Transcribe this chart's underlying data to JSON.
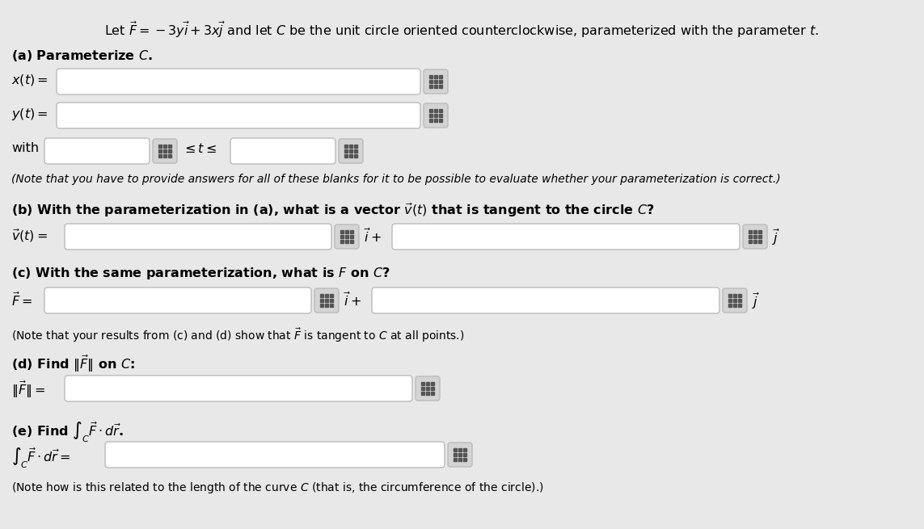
{
  "bg_color": "#e8e8e8",
  "white": "#ffffff",
  "black": "#000000",
  "icon_bg": "#d4d4d4",
  "title_text": "Let $\\vec{F} = -3y\\vec{i} + 3x\\vec{j}$ and let $C$ be the unit circle oriented counterclockwise, parameterized with the parameter $t$.",
  "part_a_label": "(a) Parameterize $C$.",
  "xt_label": "$x(t) =$",
  "yt_label": "$y(t) =$",
  "with_label": "with",
  "leq_label": "$\\leq t \\leq$",
  "note_a": "(Note that you have to provide answers for all of these blanks for it to be possible to evaluate whether your parameterization is correct.)",
  "part_b_label": "(b) With the parameterization in (a), what is a vector $\\vec{v}(t)$ that is tangent to the circle $C$?",
  "vt_label": "$\\vec{v}(t) =$",
  "i_plus_b": "$\\vec{i}+$",
  "j_b": "$\\vec{j}$",
  "part_c_label": "(c) With the same parameterization, what is $F$ on $C$?",
  "F_label": "$\\vec{F} =$",
  "i_plus_c": "$\\vec{i}+$",
  "j_c": "$\\vec{j}$",
  "note_c": "(Note that your results from (c) and (d) show that $\\vec{F}$ is tangent to $C$ at all points.)",
  "part_d_label": "(d) Find $\\|\\vec{F}\\|$ on $C$:",
  "Fnorm_label": "$\\|\\vec{F}\\| =$",
  "part_e_label": "(e) Find $\\int_C \\vec{F} \\cdot d\\vec{r}$.",
  "integral_label": "$\\int_C \\vec{F} \\cdot d\\vec{r} =$",
  "note_e": "(Note how is this related to the length of the curve $C$ (that is, the circumference of the circle).)"
}
